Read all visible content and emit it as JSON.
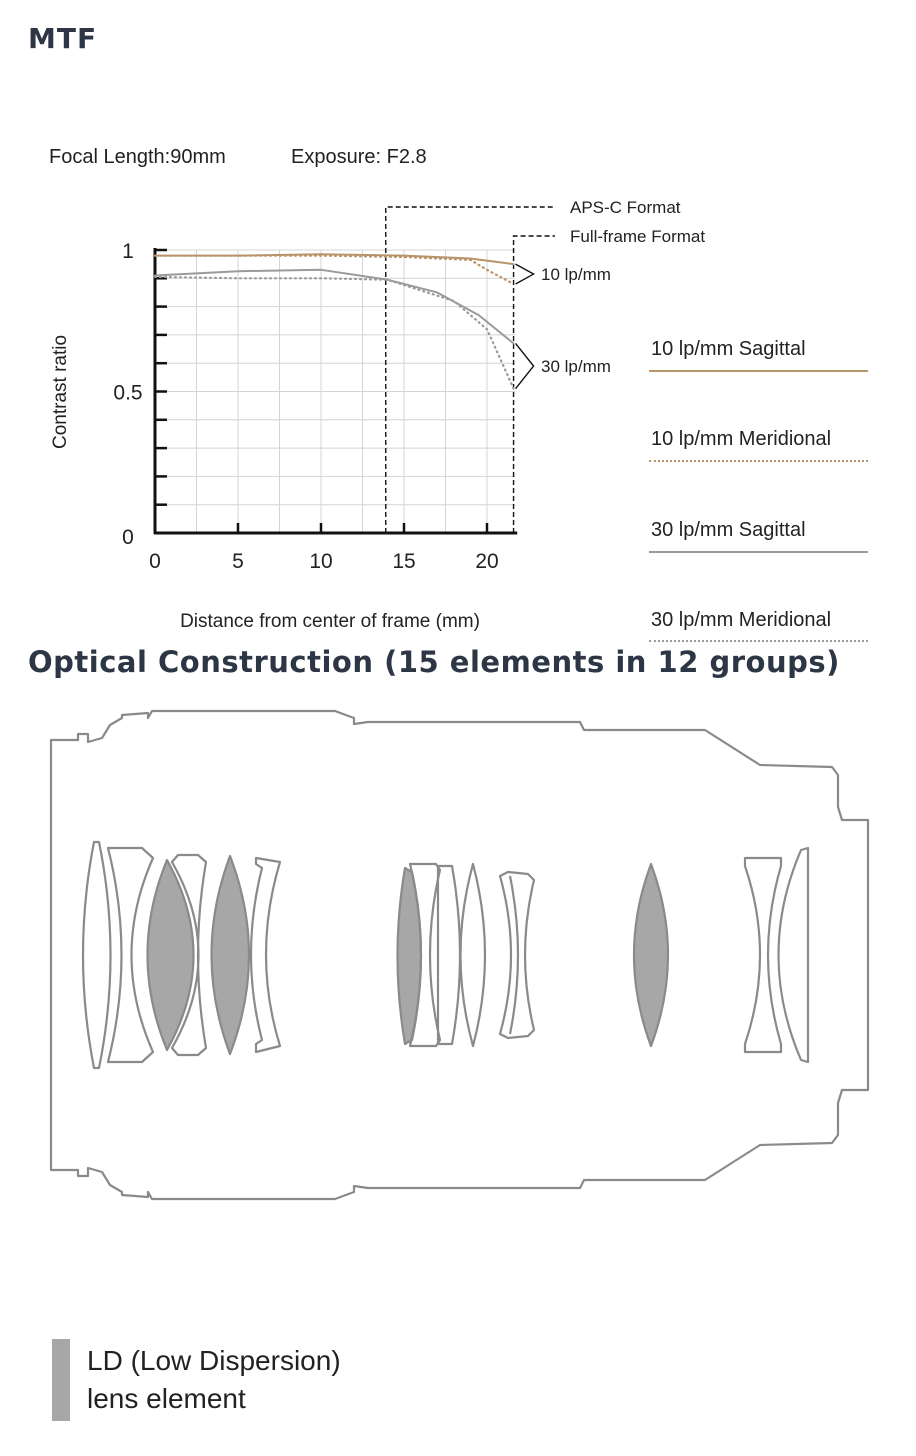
{
  "headings": {
    "mtf": "MTF",
    "optical": "Optical Construction (15 elements in 12 groups)"
  },
  "specs": {
    "focal_length": "Focal Length:90mm",
    "exposure": "Exposure: F2.8"
  },
  "chart_data": {
    "type": "line",
    "title": "",
    "xlabel": "Distance from center of frame (mm)",
    "ylabel": "Contrast ratio",
    "xlim": [
      0,
      21.7
    ],
    "ylim": [
      0,
      1
    ],
    "x_ticks": [
      0,
      5,
      10,
      15,
      20
    ],
    "y_tick_labels": [
      {
        "v": 0,
        "label": "0"
      },
      {
        "v": 0.5,
        "label": "0.5"
      },
      {
        "v": 1,
        "label": "1"
      }
    ],
    "grid": true,
    "boundaries": [
      {
        "x": 13.9,
        "label": "APS-C Format"
      },
      {
        "x": 21.6,
        "label": "Full-frame Format"
      }
    ],
    "group_labels": [
      {
        "label": "10 lp/mm",
        "y": 0.9
      },
      {
        "label": "30 lp/mm",
        "y": 0.58
      }
    ],
    "series": [
      {
        "name": "10 lp/mm Sagittal",
        "style": "solid",
        "color": "#b8946a",
        "points": [
          [
            0,
            0.98
          ],
          [
            5,
            0.98
          ],
          [
            10,
            0.985
          ],
          [
            15,
            0.98
          ],
          [
            19,
            0.97
          ],
          [
            21.6,
            0.95
          ]
        ]
      },
      {
        "name": "10 lp/mm Meridional",
        "style": "dotted",
        "color": "#b8946a",
        "points": [
          [
            0,
            0.98
          ],
          [
            5,
            0.98
          ],
          [
            10,
            0.98
          ],
          [
            15,
            0.975
          ],
          [
            19,
            0.965
          ],
          [
            20,
            0.93
          ],
          [
            21.6,
            0.88
          ]
        ]
      },
      {
        "name": "30 lp/mm Sagittal",
        "style": "solid",
        "color": "#9a9a9a",
        "points": [
          [
            0,
            0.91
          ],
          [
            5,
            0.925
          ],
          [
            10,
            0.93
          ],
          [
            14,
            0.895
          ],
          [
            17,
            0.85
          ],
          [
            19.5,
            0.77
          ],
          [
            21.6,
            0.67
          ]
        ]
      },
      {
        "name": "30 lp/mm Meridional",
        "style": "dotted",
        "color": "#9a9a9a",
        "points": [
          [
            0,
            0.905
          ],
          [
            5,
            0.9
          ],
          [
            10,
            0.9
          ],
          [
            14,
            0.895
          ],
          [
            18,
            0.82
          ],
          [
            20,
            0.72
          ],
          [
            21.6,
            0.51
          ]
        ]
      }
    ]
  },
  "legend": [
    {
      "label": "10 lp/mm Sagittal",
      "color": "#b8946a",
      "style": "solid"
    },
    {
      "label": "10 lp/mm Meridional",
      "color": "#b8946a",
      "style": "dotted"
    },
    {
      "label": "30 lp/mm Sagittal",
      "color": "#9a9a9a",
      "style": "solid"
    },
    {
      "label": "30 lp/mm Meridional",
      "color": "#9a9a9a",
      "style": "dotted"
    }
  ],
  "ld_legend": {
    "line1": "LD (Low Dispersion)",
    "line2": "lens element",
    "color": "#a7a7a7"
  }
}
